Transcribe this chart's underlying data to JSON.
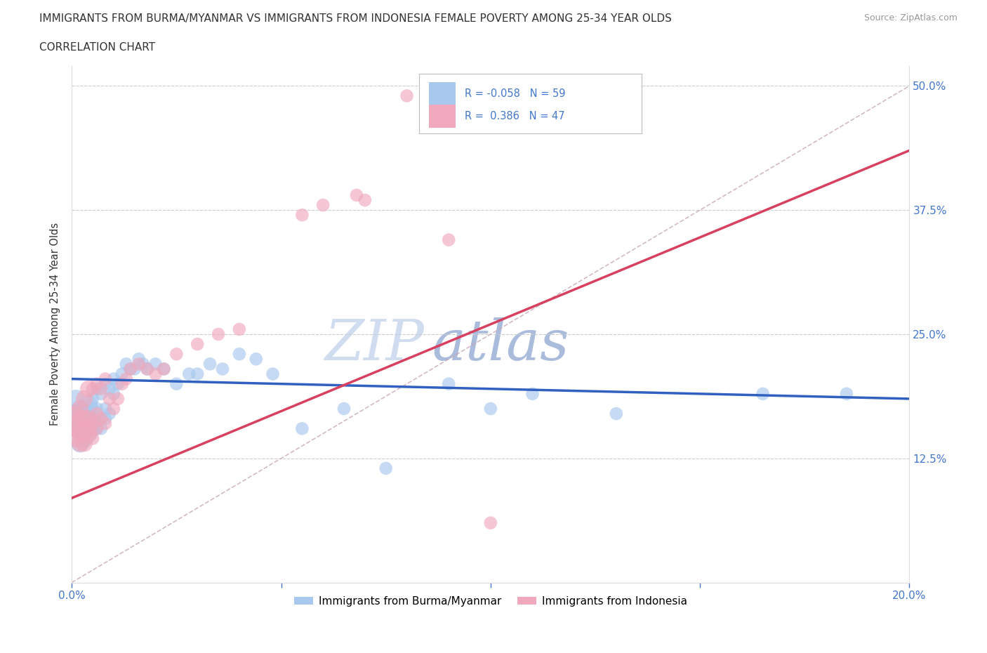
{
  "title_line1": "IMMIGRANTS FROM BURMA/MYANMAR VS IMMIGRANTS FROM INDONESIA FEMALE POVERTY AMONG 25-34 YEAR OLDS",
  "title_line2": "CORRELATION CHART",
  "source_text": "Source: ZipAtlas.com",
  "ylabel": "Female Poverty Among 25-34 Year Olds",
  "xlim": [
    0.0,
    0.2
  ],
  "ylim": [
    0.0,
    0.52
  ],
  "ytick_labels": [
    "12.5%",
    "25.0%",
    "37.5%",
    "50.0%"
  ],
  "yticks": [
    0.125,
    0.25,
    0.375,
    0.5
  ],
  "watermark_zip": "ZIP",
  "watermark_atlas": "atlas",
  "legend_label1": "Immigrants from Burma/Myanmar",
  "legend_label2": "Immigrants from Indonesia",
  "color_burma": "#A8C8EE",
  "color_indonesia": "#F0A8BC",
  "color_line_burma": "#3060C0",
  "color_line_indonesia": "#D84060",
  "color_diag": "#D0B0B8",
  "R_burma": -0.058,
  "N_burma": 59,
  "R_indonesia": 0.386,
  "N_indonesia": 47,
  "burma_line_x0": 0.0,
  "burma_line_y0": 0.205,
  "burma_line_x1": 0.2,
  "burma_line_y1": 0.185,
  "indo_line_x0": 0.0,
  "indo_line_y0": 0.085,
  "indo_line_x1": 0.2,
  "indo_line_y1": 0.435,
  "burma_x": [
    0.001,
    0.001,
    0.001,
    0.002,
    0.002,
    0.002,
    0.002,
    0.003,
    0.003,
    0.003,
    0.003,
    0.004,
    0.004,
    0.004,
    0.004,
    0.005,
    0.005,
    0.005,
    0.005,
    0.006,
    0.006,
    0.006,
    0.007,
    0.007,
    0.007,
    0.008,
    0.008,
    0.008,
    0.009,
    0.009,
    0.01,
    0.01,
    0.011,
    0.012,
    0.013,
    0.014,
    0.015,
    0.016,
    0.017,
    0.018,
    0.02,
    0.022,
    0.025,
    0.028,
    0.03,
    0.033,
    0.036,
    0.04,
    0.044,
    0.048,
    0.055,
    0.065,
    0.075,
    0.09,
    0.1,
    0.11,
    0.13,
    0.165,
    0.185
  ],
  "burma_y": [
    0.155,
    0.17,
    0.185,
    0.14,
    0.155,
    0.16,
    0.175,
    0.145,
    0.155,
    0.165,
    0.175,
    0.15,
    0.16,
    0.165,
    0.18,
    0.155,
    0.165,
    0.175,
    0.185,
    0.155,
    0.175,
    0.195,
    0.155,
    0.165,
    0.19,
    0.165,
    0.175,
    0.2,
    0.17,
    0.195,
    0.19,
    0.205,
    0.2,
    0.21,
    0.22,
    0.215,
    0.215,
    0.225,
    0.22,
    0.215,
    0.22,
    0.215,
    0.2,
    0.21,
    0.21,
    0.22,
    0.215,
    0.23,
    0.225,
    0.21,
    0.155,
    0.175,
    0.115,
    0.2,
    0.175,
    0.19,
    0.17,
    0.19,
    0.19
  ],
  "indonesia_x": [
    0.001,
    0.001,
    0.001,
    0.001,
    0.002,
    0.002,
    0.002,
    0.002,
    0.003,
    0.003,
    0.003,
    0.003,
    0.004,
    0.004,
    0.004,
    0.004,
    0.005,
    0.005,
    0.005,
    0.006,
    0.006,
    0.006,
    0.007,
    0.007,
    0.008,
    0.008,
    0.009,
    0.01,
    0.011,
    0.012,
    0.013,
    0.014,
    0.016,
    0.018,
    0.02,
    0.022,
    0.025,
    0.03,
    0.035,
    0.04,
    0.055,
    0.06,
    0.068,
    0.07,
    0.08,
    0.09,
    0.1
  ],
  "indonesia_y": [
    0.145,
    0.155,
    0.16,
    0.17,
    0.14,
    0.15,
    0.165,
    0.175,
    0.14,
    0.155,
    0.165,
    0.185,
    0.15,
    0.155,
    0.165,
    0.195,
    0.145,
    0.16,
    0.195,
    0.155,
    0.17,
    0.2,
    0.165,
    0.195,
    0.16,
    0.205,
    0.185,
    0.175,
    0.185,
    0.2,
    0.205,
    0.215,
    0.22,
    0.215,
    0.21,
    0.215,
    0.23,
    0.24,
    0.25,
    0.255,
    0.37,
    0.38,
    0.39,
    0.385,
    0.49,
    0.345,
    0.06
  ]
}
